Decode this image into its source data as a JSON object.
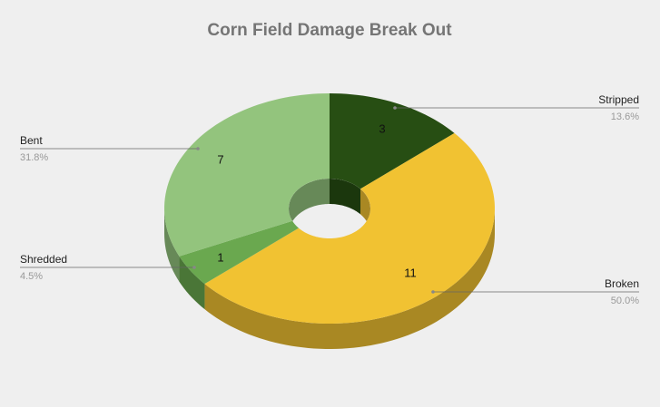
{
  "chart_data": {
    "type": "pie3d-donut",
    "title": "Corn Field Damage Break Out",
    "categories": [
      "Stripped",
      "Broken",
      "Shredded",
      "Bent"
    ],
    "values": [
      3,
      11,
      1,
      7
    ],
    "percent_labels": [
      "13.6%",
      "50.0%",
      "4.5%",
      "31.8%"
    ],
    "colors": [
      "#274e13",
      "#f1c232",
      "#6aa84f",
      "#93c47d"
    ]
  }
}
